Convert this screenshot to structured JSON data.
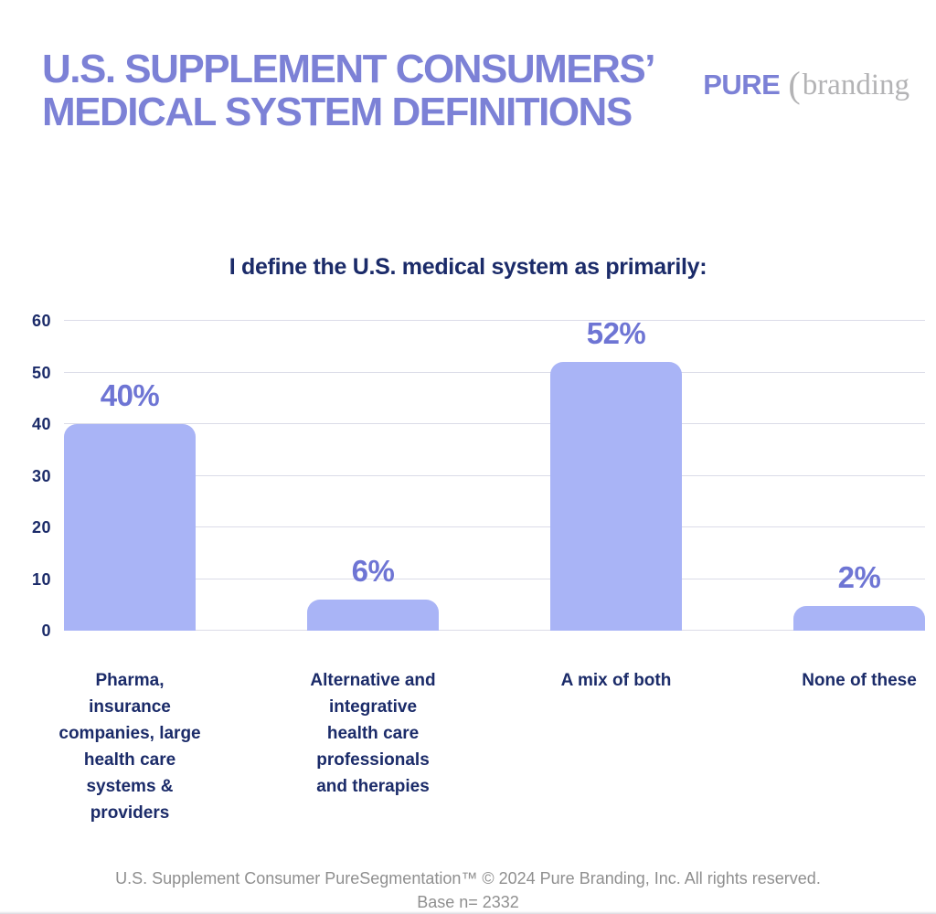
{
  "header": {
    "title_line1": "U.S. SUPPLEMENT CONSUMERS’",
    "title_line2": "MEDICAL SYSTEM DEFINITIONS",
    "logo": {
      "name": "PURE",
      "paren": "(",
      "suffix": "branding"
    }
  },
  "chart_data": {
    "type": "bar",
    "title": "I define the U.S. medical system as primarily:",
    "categories": [
      "Pharma, insurance companies, large health care systems & providers",
      "Alternative and integrative health care professionals and therapies",
      "A mix of both",
      "None of these"
    ],
    "category_label_lines": [
      [
        "Pharma,",
        "insurance",
        "companies, large",
        "health care",
        "systems &",
        "providers"
      ],
      [
        "Alternative and",
        "integrative",
        "health care",
        "professionals",
        "and therapies"
      ],
      [
        "A mix of both"
      ],
      [
        "None of these"
      ]
    ],
    "values": [
      40,
      6,
      52,
      2
    ],
    "value_labels": [
      "40%",
      "6%",
      "52%",
      "2%"
    ],
    "xlabel": "",
    "ylabel": "",
    "y_ticks": [
      0,
      10,
      20,
      30,
      40,
      50,
      60
    ],
    "ylim": [
      0,
      60
    ],
    "grid": true,
    "legend_position": "none",
    "bar_color": "#a9b4f6",
    "value_label_color": "#6e75d4",
    "axis_text_color": "#1b2b69",
    "gridline_color": "#dbdce8"
  },
  "footer": {
    "line1": "U.S. Supplement Consumer PureSegmentation™ © 2024 Pure Branding, Inc. All rights reserved.",
    "line2": "Base n= 2332"
  },
  "colors": {
    "title_purple": "#7c81d6",
    "navy": "#1b2b69",
    "logo_gray": "#b3b3b5",
    "footer_gray": "#8f8f8f",
    "background": "#ffffff"
  }
}
